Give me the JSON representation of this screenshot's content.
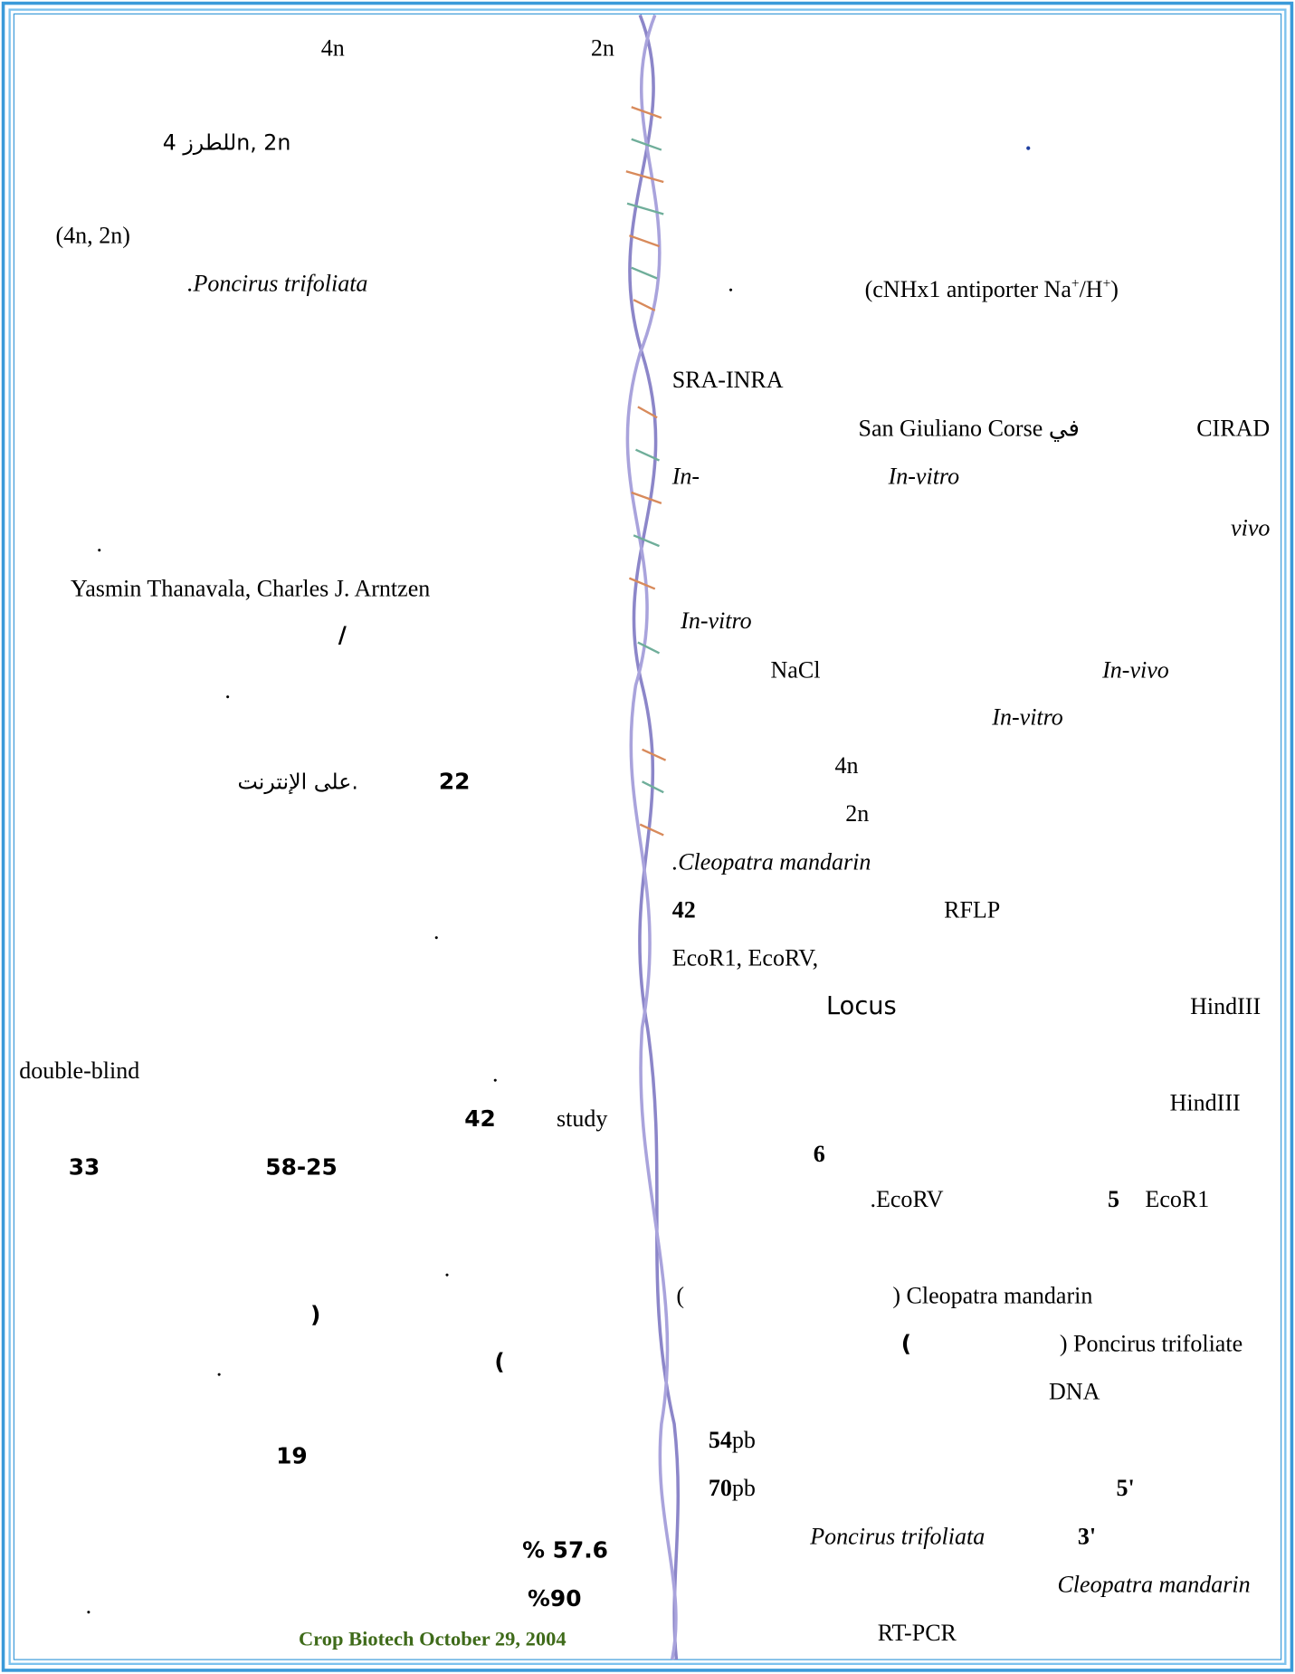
{
  "fragments": [
    "4n",
    "2n",
    "للطرز 4n, 2n",
    ".",
    "(4n, 2n)",
    ".Poncirus trifoliata",
    ".",
    "(cNHx1 antiporter Na",
    "+",
    "/H",
    "+",
    ")",
    "SRA-INRA",
    "San Giuliano Corse في",
    "CIRAD",
    "In-",
    "In-vitro",
    "vivo",
    ".",
    "Yasmin Thanavala, Charles J. Arntzen",
    "In-vitro",
    "/",
    "NaCl",
    "In-vivo",
    ".",
    "In-vitro",
    "4n",
    "22",
    "على الإنترنت.",
    "2n",
    ".Cleopatra mandarin",
    "42",
    "RFLP",
    ".",
    "EcoR1, EcoRV,",
    "Locus",
    "HindIII",
    "double-blind",
    ".",
    "HindIII",
    "42",
    "study",
    "6",
    "33",
    "58-25",
    ".EcoRV",
    "5",
    "EcoR1",
    ".",
    "(",
    ") Cleopatra mandarin",
    ")",
    "(",
    ") Poncirus trifoliate",
    "(",
    ".",
    "DNA",
    "54",
    "pb",
    "19",
    "70",
    "pb",
    "5'",
    "Poncirus trifoliata",
    "3'",
    "% 57.6",
    "Cleopatra mandarin",
    "%90",
    ".",
    "Crop Biotech October 29, 2004",
    "RT-PCR"
  ]
}
